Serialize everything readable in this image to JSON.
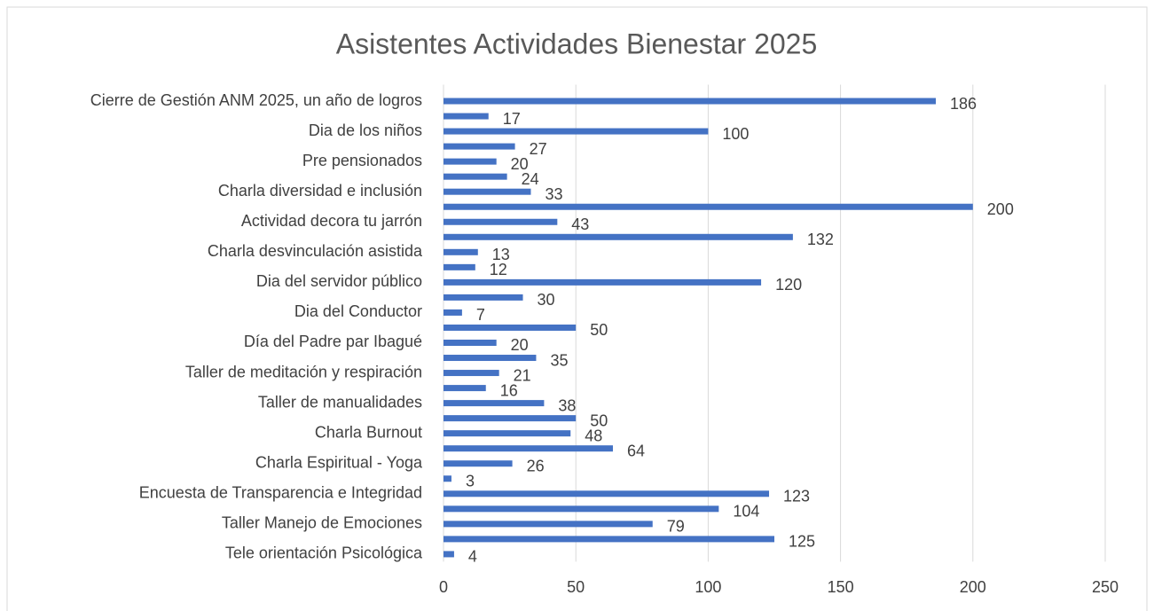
{
  "chart_data": {
    "type": "bar",
    "orientation": "horizontal",
    "title": "Asistentes Actividades Bienestar 2025",
    "categories": [
      "Cierre de Gestión ANM 2025, un año de logros",
      null,
      "Dia de los niños",
      null,
      "Pre pensionados",
      null,
      "Charla diversidad e inclusión",
      null,
      "Actividad decora tu jarrón",
      null,
      "Charla desvinculación asistida",
      null,
      "Dia del servidor público",
      null,
      "Dia del Conductor",
      null,
      "Día del Padre par Ibagué",
      null,
      "Taller de meditación y respiración",
      null,
      "Taller de manualidades",
      null,
      "Charla Burnout",
      null,
      "Charla Espiritual - Yoga",
      null,
      "Encuesta de Transparencia e Integridad",
      null,
      "Taller Manejo de Emociones",
      null,
      "Tele orientación Psicológica"
    ],
    "values": [
      186,
      17,
      100,
      27,
      20,
      24,
      33,
      200,
      43,
      132,
      13,
      12,
      120,
      30,
      7,
      50,
      20,
      35,
      21,
      16,
      38,
      50,
      48,
      64,
      26,
      3,
      123,
      104,
      79,
      125,
      4
    ],
    "color": "#4472c4",
    "xlim": [
      0,
      250
    ],
    "xticks": [
      0,
      50,
      100,
      150,
      200,
      250
    ],
    "grid": true
  }
}
